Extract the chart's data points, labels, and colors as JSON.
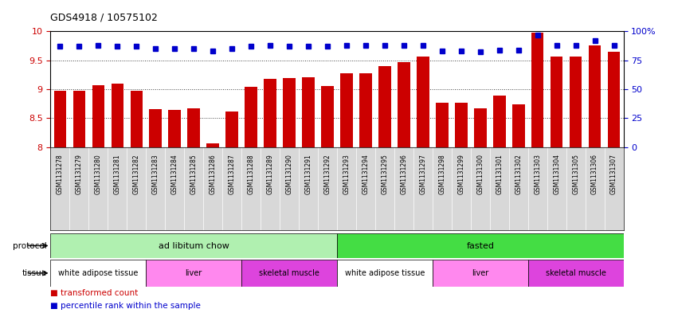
{
  "title": "GDS4918 / 10575102",
  "samples": [
    "GSM1131278",
    "GSM1131279",
    "GSM1131280",
    "GSM1131281",
    "GSM1131282",
    "GSM1131283",
    "GSM1131284",
    "GSM1131285",
    "GSM1131286",
    "GSM1131287",
    "GSM1131288",
    "GSM1131289",
    "GSM1131290",
    "GSM1131291",
    "GSM1131292",
    "GSM1131293",
    "GSM1131294",
    "GSM1131295",
    "GSM1131296",
    "GSM1131297",
    "GSM1131298",
    "GSM1131299",
    "GSM1131300",
    "GSM1131301",
    "GSM1131302",
    "GSM1131303",
    "GSM1131304",
    "GSM1131305",
    "GSM1131306",
    "GSM1131307"
  ],
  "bar_values": [
    8.97,
    8.97,
    9.07,
    9.1,
    8.97,
    8.66,
    8.64,
    8.67,
    8.07,
    8.61,
    9.04,
    9.18,
    9.19,
    9.2,
    9.05,
    9.28,
    9.28,
    9.4,
    9.47,
    9.56,
    8.77,
    8.77,
    8.67,
    8.89,
    8.74,
    9.97,
    9.56,
    9.56,
    9.76,
    9.64
  ],
  "percentile_values": [
    87,
    87,
    88,
    87,
    87,
    85,
    85,
    85,
    83,
    85,
    87,
    88,
    87,
    87,
    87,
    88,
    88,
    88,
    88,
    88,
    83,
    83,
    82,
    84,
    84,
    97,
    88,
    88,
    92,
    88
  ],
  "bar_color": "#cc0000",
  "dot_color": "#0000cc",
  "left_ylim": [
    8.0,
    10.0
  ],
  "right_ylim": [
    0,
    100
  ],
  "left_yticks": [
    8.0,
    8.5,
    9.0,
    9.5,
    10.0
  ],
  "left_yticklabels": [
    "8",
    "8.5",
    "9",
    "9.5",
    "10"
  ],
  "right_yticks": [
    0,
    25,
    50,
    75,
    100
  ],
  "right_yticklabels": [
    "0",
    "25",
    "50",
    "75",
    "100%"
  ],
  "grid_lines": [
    8.5,
    9.0,
    9.5
  ],
  "xticklabel_bg": "#d8d8d8",
  "protocol_groups": [
    {
      "label": "ad libitum chow",
      "start": 0,
      "end": 14,
      "color": "#b0f0b0"
    },
    {
      "label": "fasted",
      "start": 15,
      "end": 29,
      "color": "#44dd44"
    }
  ],
  "tissue_groups": [
    {
      "label": "white adipose tissue",
      "start": 0,
      "end": 4,
      "color": "#ffffff"
    },
    {
      "label": "liver",
      "start": 5,
      "end": 9,
      "color": "#ff88ee"
    },
    {
      "label": "skeletal muscle",
      "start": 10,
      "end": 14,
      "color": "#dd44dd"
    },
    {
      "label": "white adipose tissue",
      "start": 15,
      "end": 19,
      "color": "#ffffff"
    },
    {
      "label": "liver",
      "start": 20,
      "end": 24,
      "color": "#ff88ee"
    },
    {
      "label": "skeletal muscle",
      "start": 25,
      "end": 29,
      "color": "#dd44dd"
    }
  ]
}
